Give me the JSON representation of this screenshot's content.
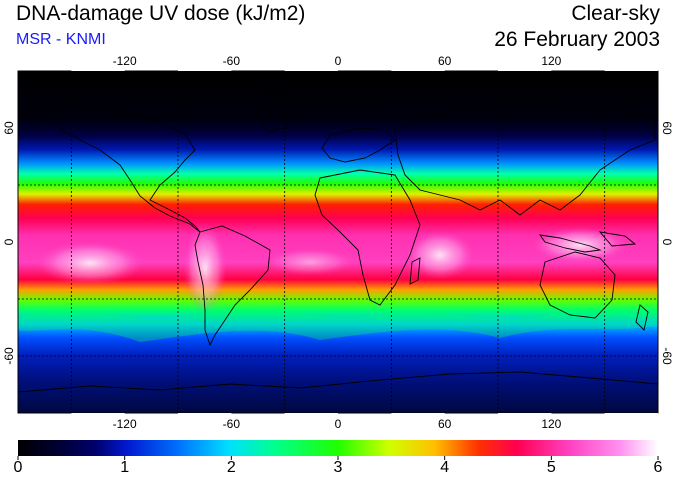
{
  "header": {
    "title": "DNA-damage UV dose (kJ/m2)",
    "subtitle": "MSR - KNMI",
    "condition": "Clear-sky",
    "date": "26 February 2003"
  },
  "colors": {
    "subtitle": "#1a1aff",
    "ocean_low": "#000015",
    "coastline": "#000000",
    "grid": "#000000"
  },
  "map": {
    "projection": "equirectangular",
    "lon_range": [
      -180,
      180
    ],
    "lat_range": [
      -90,
      90
    ],
    "lon_ticks": [
      {
        "value": -120,
        "label": "-120"
      },
      {
        "value": -60,
        "label": "-60"
      },
      {
        "value": 0,
        "label": "0"
      },
      {
        "value": 60,
        "label": "60"
      },
      {
        "value": 120,
        "label": "120"
      }
    ],
    "lat_ticks": [
      {
        "value": 60,
        "label": "60"
      },
      {
        "value": 0,
        "label": "0"
      },
      {
        "value": -60,
        "label": "-60"
      }
    ],
    "grid_lons": [
      -150,
      -90,
      -30,
      30,
      90,
      150
    ],
    "grid_lats": [
      -60,
      -30,
      30,
      60
    ]
  },
  "colorbar": {
    "min": 0,
    "max": 6,
    "labels": [
      "0",
      "1",
      "2",
      "3",
      "4",
      "5",
      "6"
    ]
  }
}
